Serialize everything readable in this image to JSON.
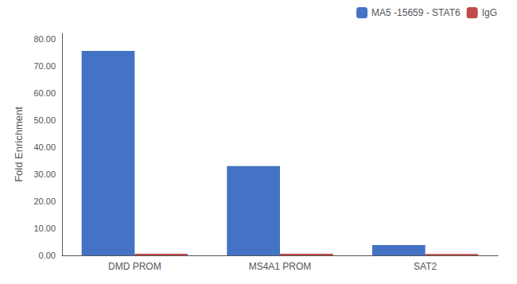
{
  "chart_data": {
    "type": "bar",
    "categories": [
      "DMD PROM",
      "MS4A1 PROM",
      "SAT2"
    ],
    "series": [
      {
        "name": "MA5 -15659 - STAT6",
        "color": "#4472C4",
        "values": [
          75.5,
          33.0,
          3.8
        ]
      },
      {
        "name": "IgG",
        "color": "#BE4B48",
        "values": [
          0.6,
          0.6,
          0.5
        ]
      }
    ],
    "ylabel": "Fold Enrichment",
    "ylim": [
      0,
      82
    ],
    "yticks": [
      {
        "value": 0,
        "label": "0.00"
      },
      {
        "value": 10,
        "label": "10.00"
      },
      {
        "value": 20,
        "label": "20.00"
      },
      {
        "value": 30,
        "label": "30.00"
      },
      {
        "value": 40,
        "label": "40.00"
      },
      {
        "value": 50,
        "label": "50.00"
      },
      {
        "value": 60,
        "label": "60.00"
      },
      {
        "value": 70,
        "label": "70.00"
      },
      {
        "value": 80,
        "label": "80.00"
      }
    ],
    "grid": false,
    "legend": "upper right"
  }
}
